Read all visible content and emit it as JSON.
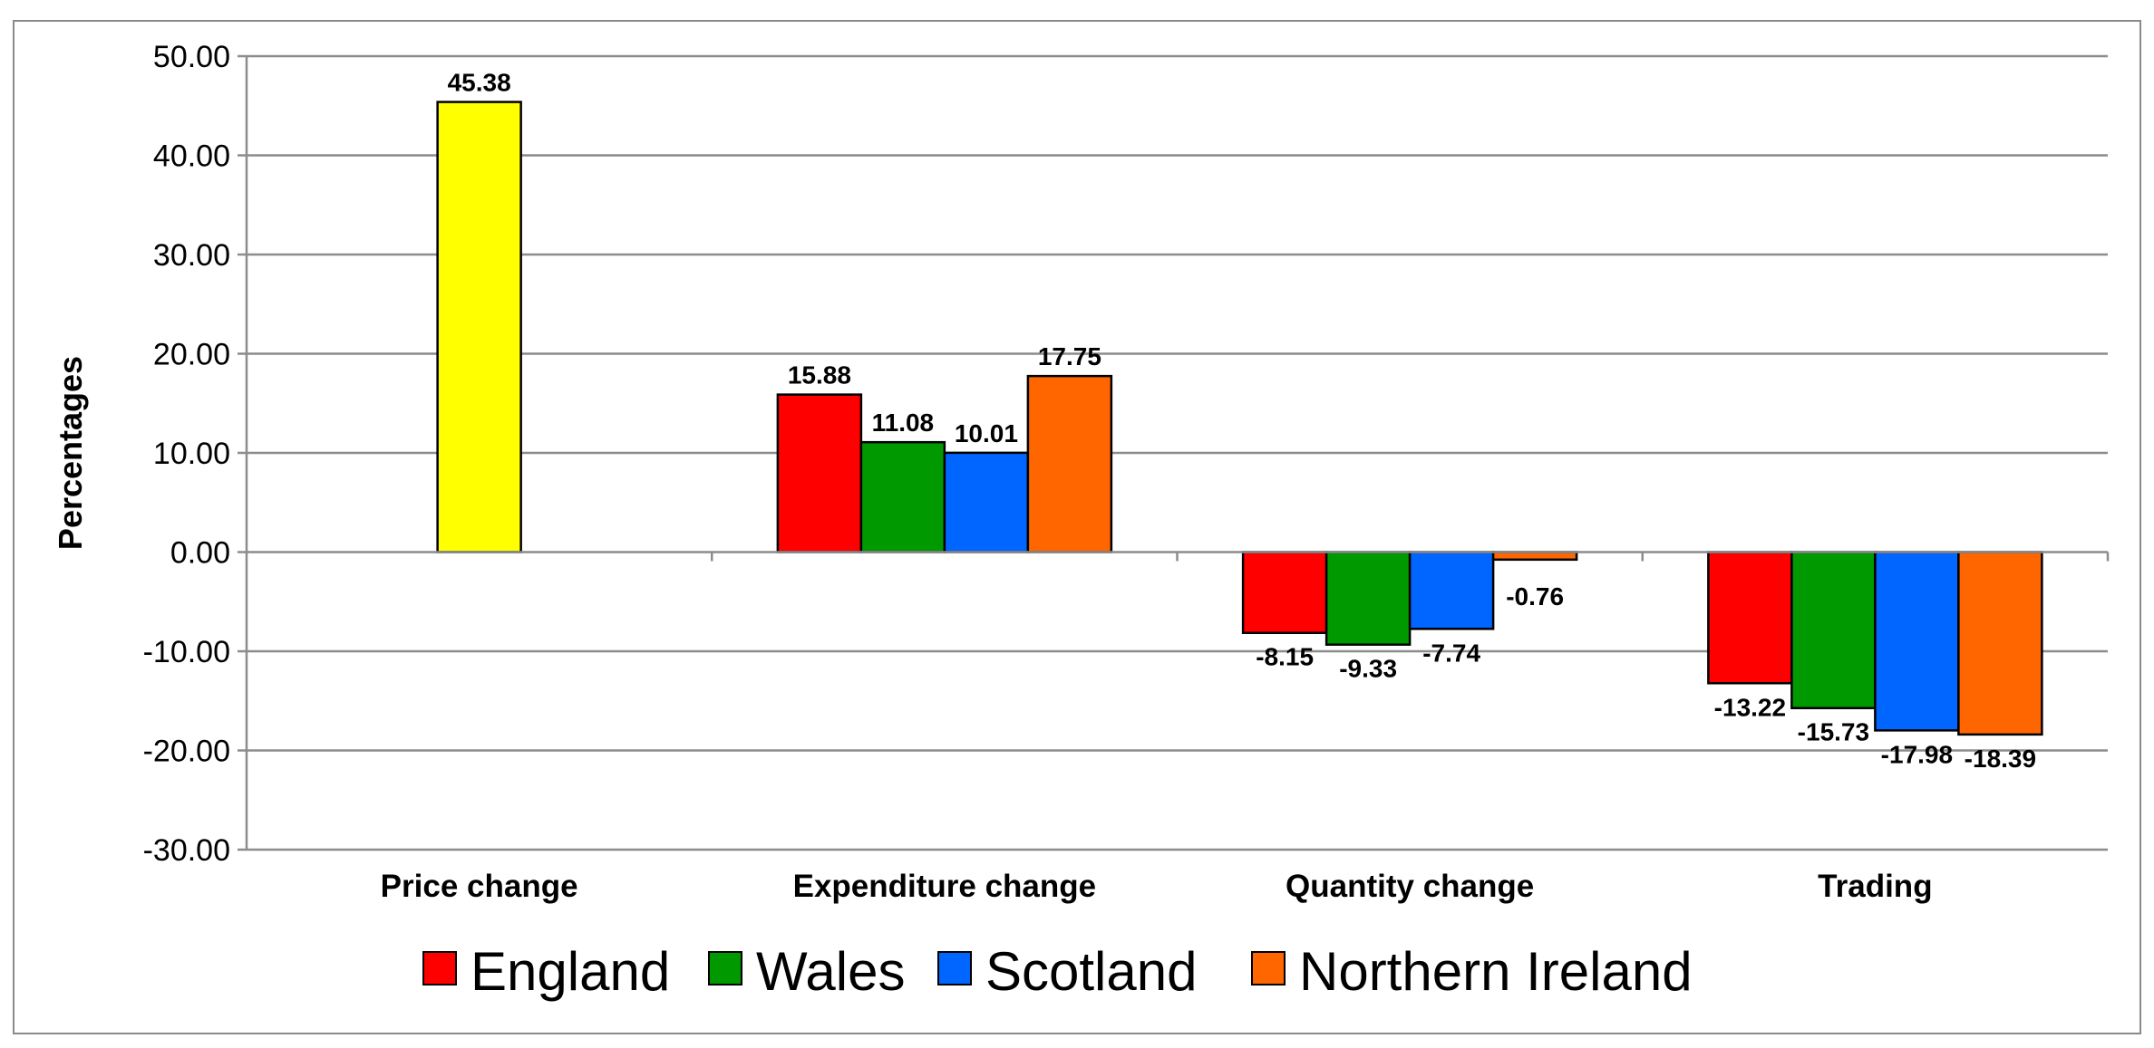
{
  "chart_data": {
    "type": "bar",
    "title": "",
    "xlabel": "",
    "ylabel": "Percentages",
    "ylim": [
      -30,
      50
    ],
    "ytick_step": 10,
    "ytick_labels": [
      "50.00",
      "40.00",
      "30.00",
      "20.00",
      "10.00",
      "0.00",
      "-10.00",
      "-20.00",
      "-30.00"
    ],
    "categories": [
      "Price change",
      "Expenditure change",
      "Quantity change",
      "Trading"
    ],
    "grid": true,
    "legend_position": "bottom",
    "series": [
      {
        "name": "England",
        "color": "#ff0000",
        "values": [
          null,
          15.88,
          -8.15,
          -13.22
        ],
        "labels": [
          null,
          "15.88",
          "-8.15",
          "-13.22"
        ]
      },
      {
        "name": "Wales",
        "color": "#009900",
        "values": [
          null,
          11.08,
          -9.33,
          -15.73
        ],
        "labels": [
          null,
          "11.08",
          "-9.33",
          "-15.73"
        ]
      },
      {
        "name": "Scotland",
        "color": "#0066ff",
        "values": [
          null,
          10.01,
          -7.74,
          -17.98
        ],
        "labels": [
          null,
          "10.01",
          "-7.74",
          "-17.98"
        ]
      },
      {
        "name": "Northern Ireland",
        "color": "#ff6600",
        "values": [
          null,
          17.75,
          -0.76,
          -18.39
        ],
        "labels": [
          null,
          "17.75",
          "-0.76",
          "-18.39"
        ]
      }
    ],
    "single_bars": [
      {
        "category": "Price change",
        "value": 45.38,
        "label": "45.38",
        "color": "#ffff00"
      }
    ]
  }
}
